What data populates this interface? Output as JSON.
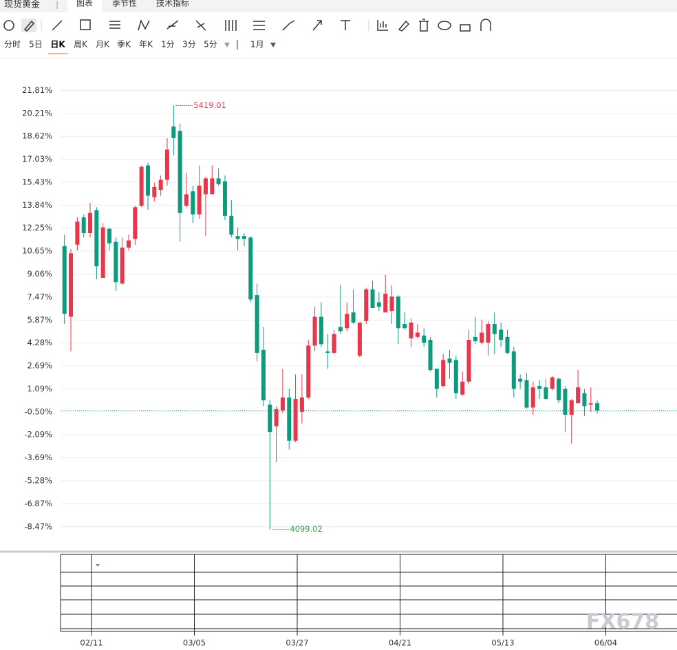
{
  "header": {
    "title": "现货黄金",
    "tabs": [
      "图表",
      "季节性",
      "技术指标"
    ]
  },
  "periods": [
    "分时",
    "5日",
    "日K",
    "周K",
    "月K",
    "季K",
    "年K",
    "1分",
    "3分",
    "5分"
  ],
  "range": "1月",
  "watermark": "FX678",
  "chart_data": {
    "type": "candlestick",
    "up_color": "#e8364a",
    "down_color": "#0e9a7c",
    "ylim": [
      -10.1,
      23.4
    ],
    "yticks": [
      {
        "value": 21.81,
        "label": "21.81%"
      },
      {
        "value": 20.21,
        "label": "20.21%"
      },
      {
        "value": 18.62,
        "label": "18.62%"
      },
      {
        "value": 17.03,
        "label": "17.03%"
      },
      {
        "value": 15.43,
        "label": "15.43%"
      },
      {
        "value": 13.84,
        "label": "13.84%"
      },
      {
        "value": 12.25,
        "label": "12.25%"
      },
      {
        "value": 10.65,
        "label": "10.65%"
      },
      {
        "value": 9.06,
        "label": "9.06%"
      },
      {
        "value": 7.47,
        "label": "7.47%"
      },
      {
        "value": 5.87,
        "label": "5.87%"
      },
      {
        "value": 4.28,
        "label": "4.28%"
      },
      {
        "value": 2.69,
        "label": "2.69%"
      },
      {
        "value": 1.09,
        "label": "1.09%"
      },
      {
        "value": -0.5,
        "label": "-0.50%"
      },
      {
        "value": -2.09,
        "label": "-2.09%"
      },
      {
        "value": -3.69,
        "label": "-3.69%"
      },
      {
        "value": -5.28,
        "label": "-5.28%"
      },
      {
        "value": -6.87,
        "label": "-6.87%"
      },
      {
        "value": -8.47,
        "label": "-8.47%"
      }
    ],
    "grid": true,
    "x_labels": [
      "02/11",
      "03/05",
      "03/27",
      "04/21",
      "05/13",
      "06/04"
    ],
    "high_label": "5419.01",
    "low_label": "4099.02",
    "open": [
      11.0,
      6.1,
      11.1,
      13.0,
      11.9,
      13.5,
      8.8,
      12.2,
      11.3,
      8.4,
      10.9,
      11.5,
      13.8,
      16.6,
      14.4,
      14.9,
      15.6,
      19.3,
      19.0,
      13.8,
      14.8,
      13.2,
      14.6,
      14.6,
      15.7,
      15.5,
      13.1,
      11.7,
      11.7,
      11.6,
      7.6,
      3.8,
      0.0,
      -1.5,
      -0.4,
      0.5,
      -2.5,
      -0.5,
      0.5,
      4.1,
      6.1,
      3.7,
      3.6,
      5.4,
      5.3,
      6.4,
      3.4,
      5.8,
      8.0,
      7.1,
      6.4,
      6.5,
      7.5,
      5.6,
      4.6,
      4.7,
      4.8,
      4.5,
      2.5,
      1.3,
      3.2,
      3.1,
      0.7,
      1.6,
      4.7,
      4.3,
      4.3,
      5.6,
      5.2,
      4.7,
      3.7,
      1.8,
      1.7,
      -0.2,
      1.3,
      1.2,
      1.1,
      1.8,
      1.1,
      -0.7,
      0.1,
      0.8,
      0.0,
      0.1
    ],
    "high": [
      11.8,
      10.8,
      13.0,
      13.2,
      14.0,
      13.7,
      12.6,
      12.3,
      11.6,
      11.6,
      11.8,
      13.8,
      16.6,
      16.8,
      15.4,
      15.9,
      18.5,
      20.76,
      19.5,
      16.1,
      15.2,
      16.6,
      15.8,
      16.6,
      16.4,
      15.9,
      14.2,
      12.3,
      11.9,
      11.7,
      8.4,
      5.4,
      0.3,
      -0.1,
      2.5,
      1.1,
      2.1,
      2.1,
      4.5,
      6.8,
      7.1,
      4.9,
      5.2,
      8.3,
      7.1,
      8.0,
      5.7,
      8.1,
      8.6,
      7.8,
      9.0,
      8.3,
      7.6,
      6.4,
      6.0,
      5.6,
      5.3,
      4.7,
      2.5,
      3.5,
      3.8,
      3.4,
      2.3,
      5.2,
      6.1,
      5.9,
      5.8,
      6.4,
      5.7,
      5.2,
      4.0,
      2.1,
      2.2,
      1.6,
      1.7,
      1.8,
      2.0,
      1.9,
      1.3,
      0.4,
      2.4,
      1.1,
      1.2,
      0.3
    ],
    "low": [
      5.6,
      3.7,
      10.7,
      11.6,
      11.6,
      8.7,
      8.8,
      10.7,
      7.9,
      8.3,
      10.7,
      11.1,
      13.7,
      13.5,
      14.1,
      14.5,
      15.2,
      17.3,
      11.3,
      13.7,
      12.6,
      12.9,
      11.7,
      14.6,
      15.2,
      12.8,
      11.6,
      10.7,
      11.0,
      7.1,
      3.0,
      -0.1,
      -8.65,
      -4.0,
      -0.6,
      -3.1,
      -2.6,
      -1.3,
      0.4,
      3.7,
      4.0,
      2.5,
      3.5,
      4.9,
      5.1,
      5.6,
      3.3,
      5.6,
      6.7,
      6.5,
      6.4,
      5.6,
      4.2,
      5.2,
      4.0,
      4.6,
      4.0,
      2.3,
      0.5,
      1.2,
      1.8,
      0.4,
      0.6,
      1.4,
      4.2,
      4.2,
      3.4,
      3.5,
      4.0,
      3.5,
      0.5,
      1.1,
      -0.3,
      -0.7,
      0.4,
      0.3,
      1.0,
      0.1,
      -1.9,
      -2.7,
      0.1,
      -0.8,
      -0.5,
      -0.6
    ],
    "close": [
      6.3,
      10.5,
      12.7,
      11.9,
      13.3,
      9.6,
      12.3,
      11.2,
      8.5,
      10.9,
      11.4,
      13.7,
      16.5,
      14.5,
      15.1,
      15.6,
      17.7,
      18.5,
      13.3,
      14.6,
      13.2,
      15.2,
      15.7,
      15.7,
      15.3,
      13.1,
      11.8,
      11.5,
      11.5,
      7.3,
      3.6,
      0.3,
      -1.9,
      -0.3,
      0.5,
      -2.5,
      0.4,
      0.5,
      4.1,
      6.1,
      4.2,
      3.6,
      4.9,
      5.1,
      6.3,
      5.7,
      5.7,
      8.0,
      6.7,
      6.8,
      7.7,
      7.5,
      5.3,
      5.3,
      5.7,
      5.0,
      4.3,
      2.4,
      1.1,
      3.1,
      2.9,
      0.8,
      1.6,
      4.5,
      4.4,
      5.0,
      5.6,
      4.9,
      4.5,
      3.6,
      1.1,
      1.6,
      -0.2,
      1.2,
      1.1,
      0.4,
      1.9,
      0.3,
      -0.7,
      0.3,
      1.2,
      -0.1,
      0.1,
      -0.4
    ]
  }
}
